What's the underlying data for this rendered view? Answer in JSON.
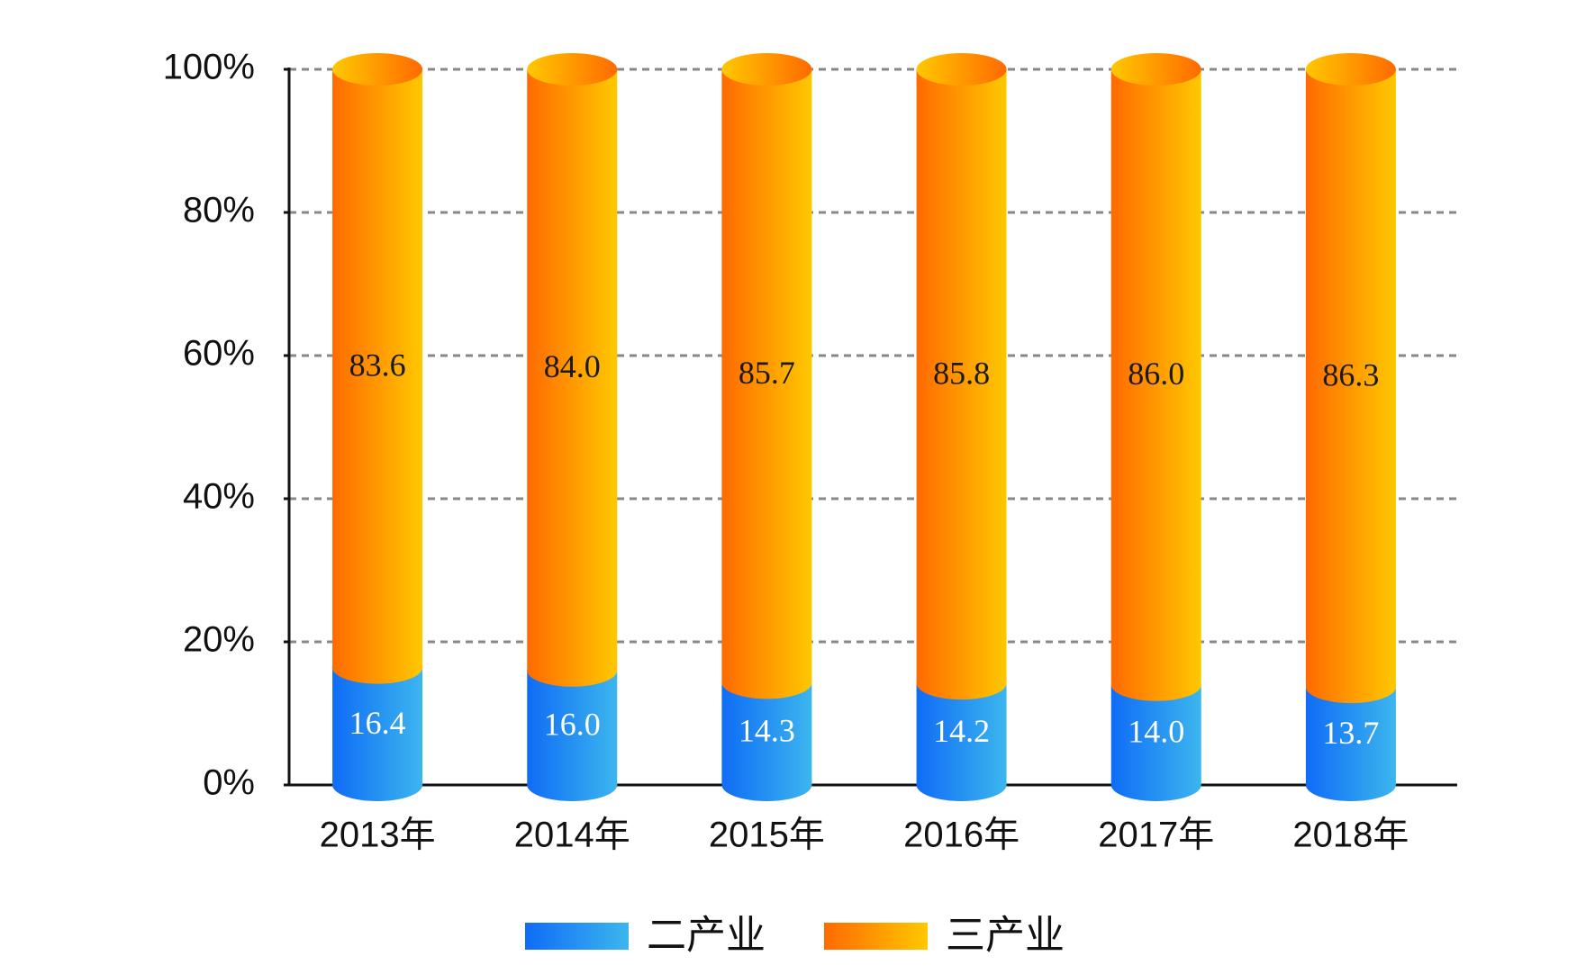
{
  "chart_data": {
    "type": "stacked-cylinder",
    "categories": [
      "2013年",
      "2014年",
      "2015年",
      "2016年",
      "2017年",
      "2018年"
    ],
    "series": [
      {
        "name": "二产业",
        "color": "#0f6cf6",
        "color_end": "#3cb6ee",
        "label_color": "#ffffff",
        "values": [
          16.4,
          16.0,
          14.3,
          14.2,
          14.0,
          13.7
        ],
        "value_labels": [
          "16.4",
          "16.0",
          "14.3",
          "14.2",
          "14.0",
          "13.7"
        ]
      },
      {
        "name": "三产业",
        "color": "#ff6a00",
        "color_end": "#ffc800",
        "label_color": "#1a1a1a",
        "values": [
          83.6,
          84.0,
          85.7,
          85.8,
          86.0,
          86.3
        ],
        "value_labels": [
          "83.6",
          "84.0",
          "85.7",
          "85.8",
          "86.0",
          "86.3"
        ]
      }
    ],
    "ylim": [
      0,
      100
    ],
    "yticks": [
      {
        "value": 0,
        "label": "0%"
      },
      {
        "value": 20,
        "label": "20%"
      },
      {
        "value": 40,
        "label": "40%"
      },
      {
        "value": 60,
        "label": "60%"
      },
      {
        "value": 80,
        "label": "80%"
      },
      {
        "value": 100,
        "label": "100%"
      }
    ],
    "grid": true
  }
}
